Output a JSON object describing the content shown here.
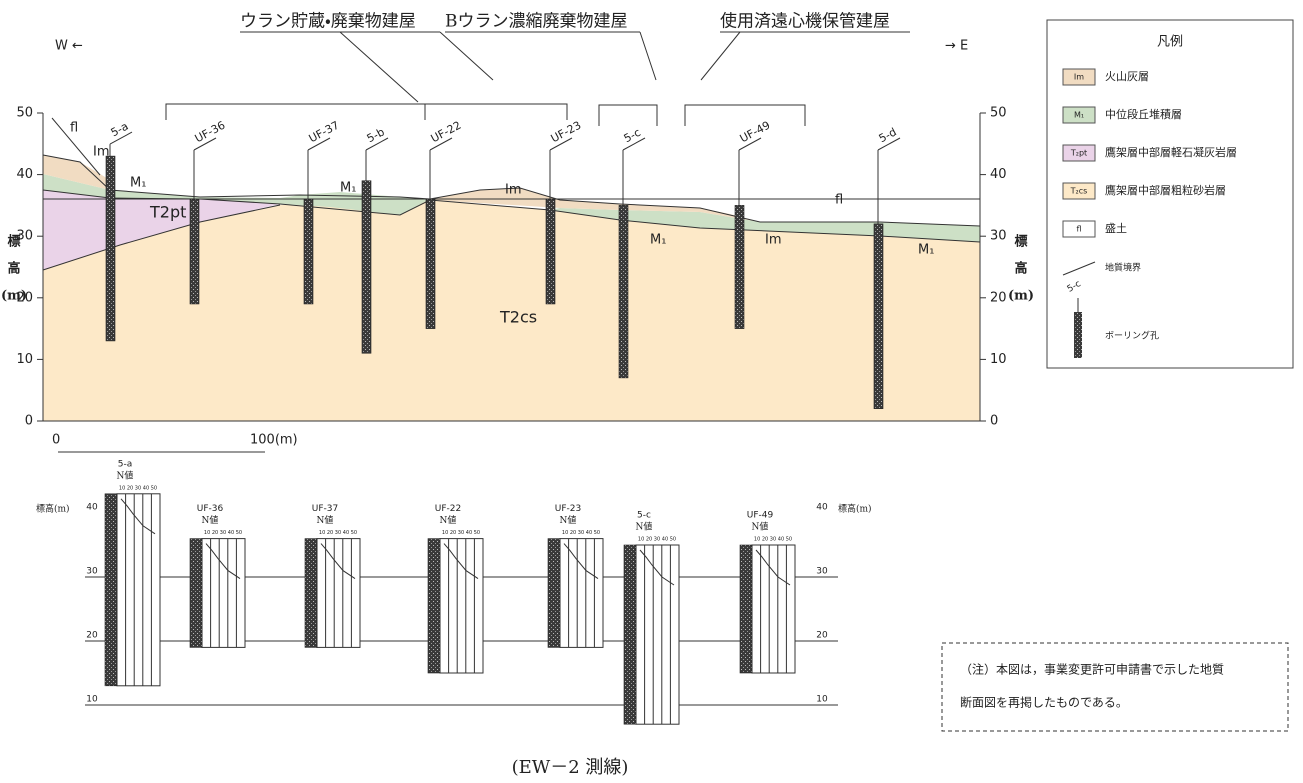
{
  "direction": {
    "west": "W ←",
    "east": "→ E"
  },
  "buildings": [
    "ウラン貯蔵・廃棄物建屋",
    "Bウラン濃縮廃棄物建屋",
    "使用済遠心機保管建屋"
  ],
  "section": {
    "ylim": [
      0,
      50
    ],
    "yticks": [
      0,
      10,
      20,
      30,
      40,
      50
    ],
    "axis_label": [
      "標",
      "高",
      "(m)"
    ],
    "scale": [
      "0",
      "100(m)"
    ],
    "layer_labels": [
      "fl",
      "Im",
      "M₁",
      "T2pt",
      "M₁",
      "Im",
      "T2cs",
      "M₁",
      "Im",
      "fl",
      "M₁"
    ],
    "boreholes": [
      {
        "label": "5-a",
        "top": 43,
        "bottom": 13
      },
      {
        "label": "UF-36",
        "top": 36,
        "bottom": 19
      },
      {
        "label": "UF-37",
        "top": 36,
        "bottom": 19
      },
      {
        "label": "5-b",
        "top": 39,
        "bottom": 11
      },
      {
        "label": "UF-22",
        "top": 36,
        "bottom": 15
      },
      {
        "label": "UF-23",
        "top": 36,
        "bottom": 19
      },
      {
        "label": "5-c",
        "top": 35,
        "bottom": 7
      },
      {
        "label": "UF-49",
        "top": 35,
        "bottom": 15
      },
      {
        "label": "5-d",
        "top": 32,
        "bottom": 2
      }
    ]
  },
  "legend": {
    "title": "凡例",
    "items": [
      {
        "symbol": "Im",
        "text": "火山灰層"
      },
      {
        "symbol": "M₁",
        "text": "中位段丘堆積層"
      },
      {
        "symbol": "T₂pt",
        "text": "鷹架層中部層軽石凝灰岩層"
      },
      {
        "symbol": "T₂cs",
        "text": "鷹架層中部層粗粒砂岩層"
      },
      {
        "symbol": "fl",
        "text": "盛土"
      }
    ],
    "boundary": "地質境界",
    "borehole_sample": "5-c",
    "borehole": "ボーリング孔"
  },
  "logs": {
    "axis_label": "標高(m)",
    "yticks": [
      10,
      20,
      30,
      40
    ],
    "nvalue_title": "N値",
    "nvalue_ticks": "10 20 30 40 50",
    "columns": [
      {
        "label": "5-a",
        "top": 43,
        "bottom": 13
      },
      {
        "label": "UF-36",
        "top": 36,
        "bottom": 19
      },
      {
        "label": "UF-37",
        "top": 36,
        "bottom": 19
      },
      {
        "label": "UF-22",
        "top": 36,
        "bottom": 15
      },
      {
        "label": "UF-23",
        "top": 36,
        "bottom": 19
      },
      {
        "label": "5-c",
        "top": 35,
        "bottom": 7
      },
      {
        "label": "UF-49",
        "top": 35,
        "bottom": 15
      }
    ]
  },
  "note": [
    "（注）本図は，事業変更許可申請書で示した地質",
    "断面図を再掲したものである。"
  ],
  "caption": "(EW－2 測線)"
}
